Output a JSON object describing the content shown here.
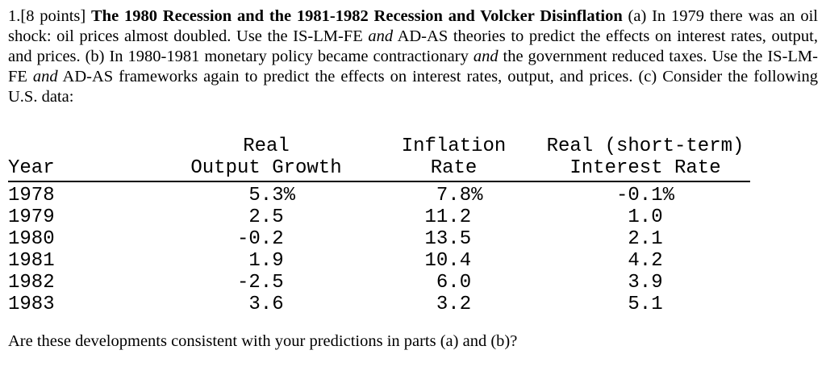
{
  "colors": {
    "background": "#ffffff",
    "text": "#000000",
    "table_rule": "#000000"
  },
  "document": {
    "question": {
      "segments": [
        "1.[8 points] ",
        "The 1980 Recession and the 1981-1982 Recession and Volcker Disinflation",
        " (a) In 1979 there was an oil shock: oil prices almost doubled. Use the IS-LM-FE ",
        "and",
        " AD-AS theories to predict the effects on interest rates, output, and prices. (b) In 1980-1981 monetary policy became contractionary ",
        "and",
        " the government reduced taxes. Use the IS-LM-FE ",
        "and",
        " AD-AS frameworks again to predict the effects on interest rates, output, and prices. (c) Consider the following U.S. data:"
      ]
    },
    "table": {
      "column_headers": [
        {
          "line1": "",
          "line2": "Year"
        },
        {
          "line1": "Real",
          "line2": "Output Growth"
        },
        {
          "line1": "Inflation",
          "line2": "Rate"
        },
        {
          "line1": "Real (short-term)",
          "line2": "Interest Rate"
        }
      ],
      "rows": [
        {
          "year": "1978",
          "output_growth": " 5.3%",
          "inflation_rate": " 7.8%",
          "real_interest_rate": "-0.1%"
        },
        {
          "year": "1979",
          "output_growth": " 2.5 ",
          "inflation_rate": "11.2 ",
          "real_interest_rate": " 1.0 "
        },
        {
          "year": "1980",
          "output_growth": "-0.2 ",
          "inflation_rate": "13.5 ",
          "real_interest_rate": " 2.1 "
        },
        {
          "year": "1981",
          "output_growth": " 1.9 ",
          "inflation_rate": "10.4 ",
          "real_interest_rate": " 4.2 "
        },
        {
          "year": "1982",
          "output_growth": "-2.5 ",
          "inflation_rate": " 6.0 ",
          "real_interest_rate": " 3.9 "
        },
        {
          "year": "1983",
          "output_growth": " 3.6 ",
          "inflation_rate": " 3.2 ",
          "real_interest_rate": " 5.1 "
        }
      ]
    },
    "closing_question": "Are these developments consistent with your predictions in parts (a) and (b)?"
  }
}
